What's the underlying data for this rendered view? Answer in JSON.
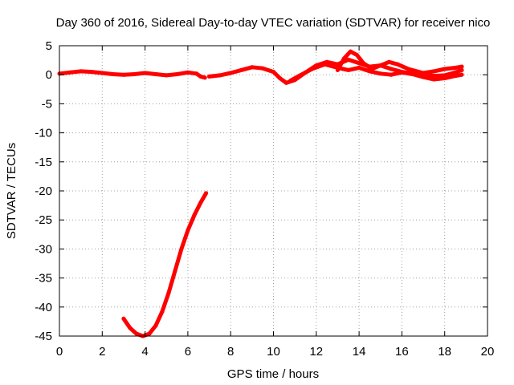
{
  "chart_data": {
    "type": "scatter",
    "title": "Day 360 of 2016, Sidereal Day-to-day VTEC variation (SDTVAR) for receiver nico",
    "xlabel": "GPS time / hours",
    "ylabel": "SDTVAR / TECUs",
    "xlim": [
      0,
      20
    ],
    "ylim": [
      -45,
      5
    ],
    "xticks": [
      0,
      2,
      4,
      6,
      8,
      10,
      12,
      14,
      16,
      18,
      20
    ],
    "yticks": [
      5,
      0,
      -5,
      -10,
      -15,
      -20,
      -25,
      -30,
      -35,
      -40,
      -45
    ],
    "grid": true,
    "series": [
      {
        "name": "SDTVAR",
        "color": "#ff0000",
        "tracks": [
          {
            "x": [
              0.0,
              0.5,
              1.0,
              1.5,
              2.0,
              2.5,
              3.0,
              3.5,
              4.0,
              4.5,
              5.0,
              5.5,
              6.0,
              6.4,
              6.6,
              6.8
            ],
            "y": [
              0.2,
              0.4,
              0.6,
              0.5,
              0.3,
              0.1,
              0.0,
              0.1,
              0.3,
              0.1,
              -0.1,
              0.1,
              0.4,
              0.2,
              -0.3,
              -0.5
            ]
          },
          {
            "x": [
              7.0,
              7.5,
              8.0,
              8.5,
              9.0,
              9.5,
              10.0,
              10.3,
              10.6,
              11.0,
              11.5,
              12.0,
              12.5,
              13.0,
              13.5,
              14.0,
              14.5,
              15.0,
              15.5,
              16.0,
              16.5,
              17.0,
              17.5,
              18.0,
              18.5,
              18.8
            ],
            "y": [
              -0.3,
              -0.1,
              0.3,
              0.8,
              1.3,
              1.1,
              0.5,
              -0.6,
              -1.4,
              -0.9,
              0.4,
              1.6,
              2.2,
              1.8,
              2.6,
              2.0,
              1.4,
              1.6,
              1.0,
              0.5,
              0.2,
              0.0,
              -0.2,
              -0.1,
              0.4,
              0.8
            ]
          },
          {
            "x": [
              13.0,
              13.3,
              13.6,
              13.9,
              14.2,
              14.6,
              15.0,
              15.4,
              15.8,
              16.3,
              17.0,
              17.5,
              18.0,
              18.5,
              18.8
            ],
            "y": [
              0.8,
              2.8,
              4.0,
              3.4,
              2.0,
              1.0,
              1.6,
              2.2,
              1.8,
              1.0,
              0.3,
              0.6,
              1.0,
              1.2,
              1.4
            ]
          },
          {
            "x": [
              10.8,
              11.2,
              11.8,
              12.4,
              13.0,
              13.5,
              14.0,
              14.5,
              15.0,
              15.5,
              16.0,
              16.5,
              17.0,
              17.5,
              18.0,
              18.5,
              18.8
            ],
            "y": [
              -1.0,
              -0.2,
              1.0,
              1.8,
              1.2,
              0.8,
              1.2,
              0.6,
              0.2,
              0.0,
              0.4,
              0.1,
              -0.4,
              -0.8,
              -0.6,
              -0.2,
              0.0
            ]
          },
          {
            "x": [
              3.0,
              3.3,
              3.6,
              3.9,
              4.2,
              4.5,
              4.8,
              5.1,
              5.4,
              5.7,
              6.0,
              6.3,
              6.6,
              6.85
            ],
            "y": [
              -42.0,
              -43.6,
              -44.6,
              -45.0,
              -44.6,
              -43.2,
              -40.8,
              -37.6,
              -33.8,
              -30.0,
              -26.8,
              -24.2,
              -22.0,
              -20.4
            ]
          }
        ]
      }
    ]
  }
}
